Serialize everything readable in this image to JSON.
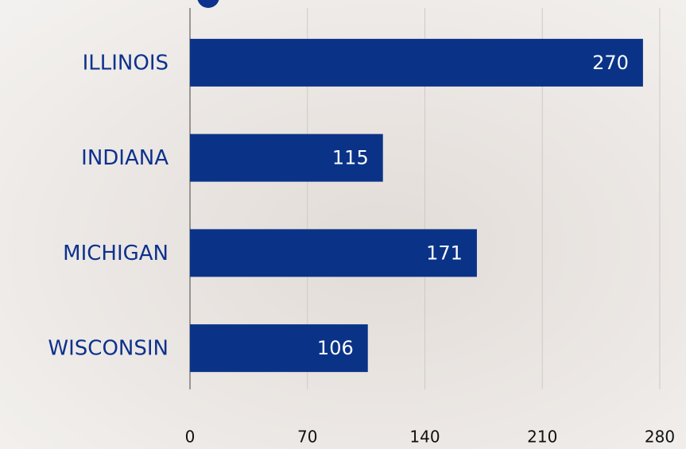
{
  "chart_data": {
    "type": "bar",
    "orientation": "horizontal",
    "categories": [
      "ILLINOIS",
      "INDIANA",
      "MICHIGAN",
      "WISCONSIN"
    ],
    "values": [
      270,
      115,
      171,
      106
    ],
    "color": "#0a3388",
    "xlim": [
      0,
      280
    ],
    "xticks": [
      0,
      70,
      140,
      210,
      280
    ],
    "grid": true
  }
}
